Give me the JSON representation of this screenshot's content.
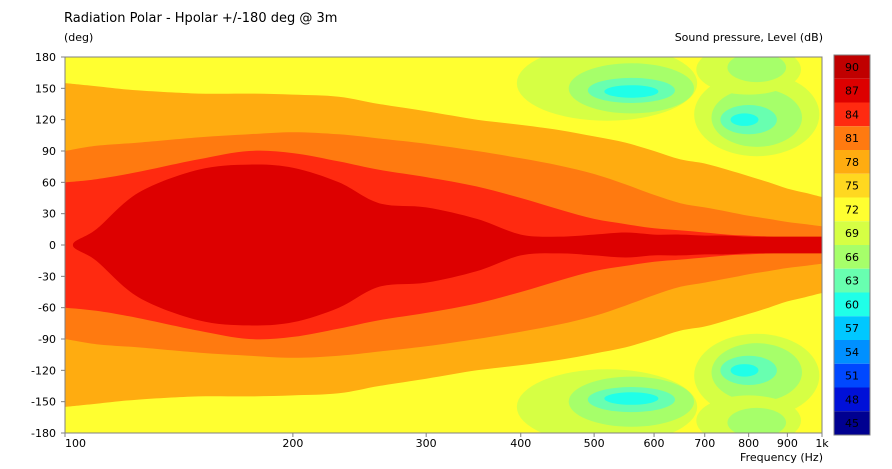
{
  "chart_data": {
    "type": "heatmap",
    "title": "Radiation Polar - Hpolar +/-180 deg @ 3m",
    "ylabel": "(deg)",
    "xlabel": "Frequency  (Hz)",
    "colorbar_label": "Sound pressure, Level  (dB)",
    "x_scale": "log",
    "xlim": [
      100,
      1000
    ],
    "ylim": [
      -180,
      180
    ],
    "x_ticks": [
      {
        "value": 100,
        "label": "100"
      },
      {
        "value": 200,
        "label": "200"
      },
      {
        "value": 300,
        "label": "300"
      },
      {
        "value": 400,
        "label": "400"
      },
      {
        "value": 500,
        "label": "500"
      },
      {
        "value": 600,
        "label": "600"
      },
      {
        "value": 700,
        "label": "700"
      },
      {
        "value": 800,
        "label": "800"
      },
      {
        "value": 900,
        "label": "900"
      },
      {
        "value": 1000,
        "label": "1k"
      }
    ],
    "y_ticks": [
      "180",
      "150",
      "120",
      "90",
      "60",
      "30",
      "0",
      "-30",
      "-60",
      "-90",
      "-120",
      "-150",
      "-180"
    ],
    "colorbar": {
      "levels": [
        90,
        87,
        84,
        81,
        78,
        75,
        72,
        69,
        66,
        63,
        60,
        57,
        54,
        51,
        48,
        45
      ],
      "colors": [
        "#c00000",
        "#dd0000",
        "#ff2a10",
        "#ff7a10",
        "#ffac10",
        "#ffd820",
        "#ffff30",
        "#d6ff44",
        "#a6ff6a",
        "#68ffb0",
        "#20ffe8",
        "#00c8ff",
        "#0090ff",
        "#0048ff",
        "#0010d8",
        "#000090"
      ]
    },
    "x_nodes": [
      100,
      110,
      125,
      150,
      175,
      200,
      230,
      260,
      300,
      350,
      400,
      450,
      500,
      550,
      600,
      650,
      700,
      750,
      800,
      850,
      900,
      950,
      1000
    ],
    "contours": [
      {
        "level": 78,
        "halfwidth": [
          155,
          152,
          148,
          145,
          145,
          144,
          142,
          135,
          128,
          120,
          115,
          110,
          104,
          98,
          90,
          82,
          78,
          72,
          66,
          60,
          54,
          50,
          46
        ]
      },
      {
        "level": 81,
        "halfwidth": [
          90,
          95,
          98,
          103,
          106,
          108,
          106,
          102,
          97,
          90,
          83,
          76,
          68,
          58,
          48,
          40,
          36,
          32,
          28,
          25,
          22,
          20,
          18
        ]
      },
      {
        "level": 84,
        "halfwidth": [
          60,
          63,
          70,
          82,
          90,
          88,
          80,
          72,
          65,
          56,
          45,
          34,
          25,
          20,
          16,
          14,
          12,
          10,
          9,
          8,
          7,
          7,
          6
        ]
      },
      {
        "level": 87,
        "halfwidth": [
          0,
          15,
          50,
          72,
          77,
          74,
          60,
          40,
          36,
          25,
          10,
          8,
          10,
          12,
          10,
          10,
          9,
          9,
          8,
          8,
          8,
          8,
          8
        ]
      }
    ],
    "background_level": 72,
    "side_lobes": [
      {
        "level": 69,
        "center_freq": 520,
        "center_deg": 155,
        "freq_span": 380,
        "deg_span": 36
      },
      {
        "level": 66,
        "center_freq": 560,
        "center_deg": 150,
        "freq_span": 260,
        "deg_span": 24
      },
      {
        "level": 63,
        "center_freq": 560,
        "center_deg": 148,
        "freq_span": 170,
        "deg_span": 12
      },
      {
        "level": 60,
        "center_freq": 560,
        "center_deg": 147,
        "freq_span": 100,
        "deg_span": 6
      },
      {
        "level": 69,
        "center_freq": 520,
        "center_deg": -155,
        "freq_span": 380,
        "deg_span": 36
      },
      {
        "level": 66,
        "center_freq": 560,
        "center_deg": -150,
        "freq_span": 260,
        "deg_span": 24
      },
      {
        "level": 63,
        "center_freq": 560,
        "center_deg": -148,
        "freq_span": 170,
        "deg_span": 12
      },
      {
        "level": 60,
        "center_freq": 560,
        "center_deg": -147,
        "freq_span": 100,
        "deg_span": 6
      },
      {
        "level": 69,
        "center_freq": 820,
        "center_deg": 125,
        "freq_span": 380,
        "deg_span": 40
      },
      {
        "level": 66,
        "center_freq": 820,
        "center_deg": 122,
        "freq_span": 260,
        "deg_span": 28
      },
      {
        "level": 63,
        "center_freq": 800,
        "center_deg": 120,
        "freq_span": 150,
        "deg_span": 14
      },
      {
        "level": 60,
        "center_freq": 790,
        "center_deg": 120,
        "freq_span": 70,
        "deg_span": 6
      },
      {
        "level": 69,
        "center_freq": 820,
        "center_deg": -125,
        "freq_span": 380,
        "deg_span": 40
      },
      {
        "level": 66,
        "center_freq": 820,
        "center_deg": -122,
        "freq_span": 260,
        "deg_span": 28
      },
      {
        "level": 63,
        "center_freq": 800,
        "center_deg": -120,
        "freq_span": 150,
        "deg_span": 14
      },
      {
        "level": 60,
        "center_freq": 790,
        "center_deg": -120,
        "freq_span": 70,
        "deg_span": 6
      },
      {
        "level": 69,
        "center_freq": 800,
        "center_deg": 168,
        "freq_span": 300,
        "deg_span": 24
      },
      {
        "level": 66,
        "center_freq": 820,
        "center_deg": 170,
        "freq_span": 160,
        "deg_span": 14
      },
      {
        "level": 69,
        "center_freq": 800,
        "center_deg": -168,
        "freq_span": 300,
        "deg_span": 24
      },
      {
        "level": 66,
        "center_freq": 820,
        "center_deg": -170,
        "freq_span": 160,
        "deg_span": 14
      }
    ]
  }
}
